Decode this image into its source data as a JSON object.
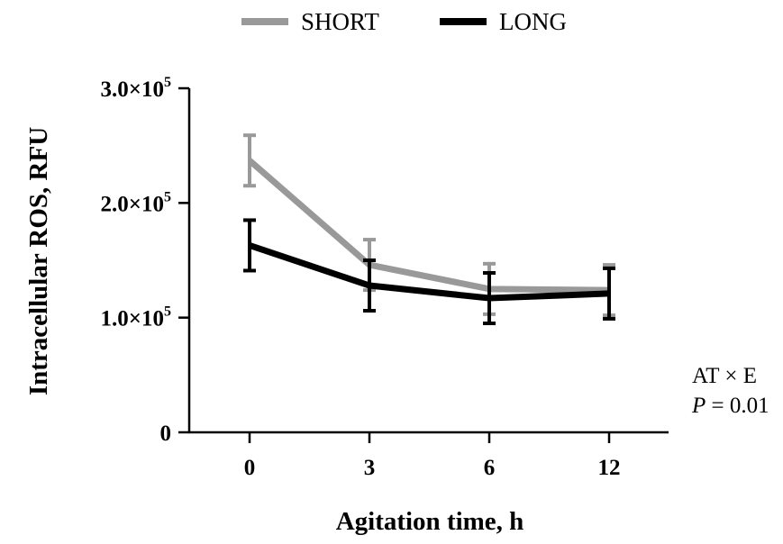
{
  "chart_data": {
    "type": "line",
    "xlabel": "Agitation time, h",
    "ylabel": "Intracellular ROS, RFU",
    "categories": [
      "0",
      "3",
      "6",
      "12"
    ],
    "ylim": [
      0,
      300000
    ],
    "yticks": [
      {
        "value": 0,
        "mantissa": "0",
        "exp": ""
      },
      {
        "value": 100000,
        "mantissa": "1.0×10",
        "exp": "5"
      },
      {
        "value": 200000,
        "mantissa": "2.0×10",
        "exp": "5"
      },
      {
        "value": 300000,
        "mantissa": "3.0×10",
        "exp": "5"
      }
    ],
    "legend_position": "top",
    "series": [
      {
        "name": "SHORT",
        "color": "#999999",
        "values": [
          237000,
          146000,
          125000,
          124000
        ],
        "errors": [
          22000,
          22000,
          22000,
          22000
        ]
      },
      {
        "name": "LONG",
        "color": "#000000",
        "values": [
          163000,
          128000,
          117000,
          121000
        ],
        "errors": [
          22000,
          22000,
          22000,
          22000
        ]
      }
    ],
    "annotation": {
      "line1": "AT × E",
      "p_symbol": "P",
      "p_rest": " = 0.01"
    }
  }
}
